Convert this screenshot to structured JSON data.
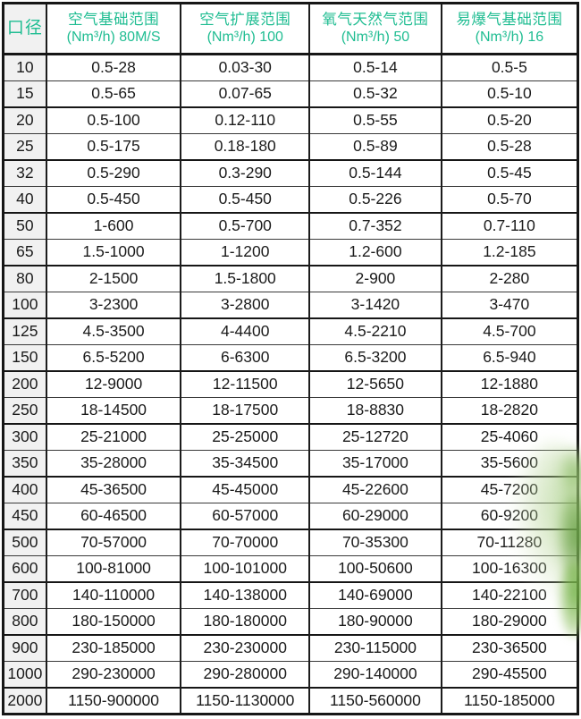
{
  "colors": {
    "header_text": "#20bd92",
    "body_text": "#1b1b1b",
    "diameter_column_bg": "#f1f1f1",
    "border": "#161616",
    "leaf_green": "#68ac3a",
    "background": "#ffffff"
  },
  "table": {
    "corner_header": "口径",
    "columns": [
      {
        "line1": "空气基础范围",
        "line2": "(Nm³/h)  80M/S"
      },
      {
        "line1": "空气扩展范围",
        "line2": "(Nm³/h)  100"
      },
      {
        "line1": "氧气天然气范围",
        "line2": "(Nm³/h)  50"
      },
      {
        "line1": "易爆气基础范围",
        "line2": "(Nm³/h)  16"
      }
    ],
    "rows": [
      [
        "10",
        "0.5-28",
        "0.03-30",
        "0.5-14",
        "0.5-5"
      ],
      [
        "15",
        "0.5-65",
        "0.07-65",
        "0.5-32",
        "0.5-10"
      ],
      [
        "20",
        "0.5-100",
        "0.12-110",
        "0.5-55",
        "0.5-20"
      ],
      [
        "25",
        "0.5-175",
        "0.18-180",
        "0.5-89",
        "0.5-28"
      ],
      [
        "32",
        "0.5-290",
        "0.3-290",
        "0.5-144",
        "0.5-45"
      ],
      [
        "40",
        "0.5-450",
        "0.5-450",
        "0.5-226",
        "0.5-70"
      ],
      [
        "50",
        "1-600",
        "0.5-700",
        "0.7-352",
        "0.7-110"
      ],
      [
        "65",
        "1.5-1000",
        "1-1200",
        "1.2-600",
        "1.2-185"
      ],
      [
        "80",
        "2-1500",
        "1.5-1800",
        "2-900",
        "2-280"
      ],
      [
        "100",
        "3-2300",
        "3-2800",
        "3-1420",
        "3-470"
      ],
      [
        "125",
        "4.5-3500",
        "4-4400",
        "4.5-2210",
        "4.5-700"
      ],
      [
        "150",
        "6.5-5200",
        "6-6300",
        "6.5-3200",
        "6.5-940"
      ],
      [
        "200",
        "12-9000",
        "12-11500",
        "12-5650",
        "12-1880"
      ],
      [
        "250",
        "18-14500",
        "18-17500",
        "18-8830",
        "18-2820"
      ],
      [
        "300",
        "25-21000",
        "25-25000",
        "25-12720",
        "25-4060"
      ],
      [
        "350",
        "35-28000",
        "35-34500",
        "35-17000",
        "35-5600"
      ],
      [
        "400",
        "45-36500",
        "45-45000",
        "45-22600",
        "45-7200"
      ],
      [
        "450",
        "60-46500",
        "60-57000",
        "60-29000",
        "60-9200"
      ],
      [
        "500",
        "70-57000",
        "70-70000",
        "70-35300",
        "70-11280"
      ],
      [
        "600",
        "100-81000",
        "100-101000",
        "100-50600",
        "100-16300"
      ],
      [
        "700",
        "140-110000",
        "140-138000",
        "140-69000",
        "140-22100"
      ],
      [
        "800",
        "180-150000",
        "180-180000",
        "180-90000",
        "180-29000"
      ],
      [
        "900",
        "230-185000",
        "230-230000",
        "230-115000",
        "230-36500"
      ],
      [
        "1000",
        "290-230000",
        "290-280000",
        "290-140000",
        "290-45500"
      ],
      [
        "2000",
        "1150-900000",
        "1150-1130000",
        "1150-560000",
        "1150-185000"
      ]
    ]
  },
  "chart_data": {
    "type": "table",
    "title": "",
    "columns": [
      "口径",
      "空气基础范围 (Nm³/h) 80M/S",
      "空气扩展范围 (Nm³/h) 100",
      "氧气天然气范围 (Nm³/h) 50",
      "易爆气基础范围 (Nm³/h) 16"
    ],
    "rows": [
      [
        "10",
        "0.5-28",
        "0.03-30",
        "0.5-14",
        "0.5-5"
      ],
      [
        "15",
        "0.5-65",
        "0.07-65",
        "0.5-32",
        "0.5-10"
      ],
      [
        "20",
        "0.5-100",
        "0.12-110",
        "0.5-55",
        "0.5-20"
      ],
      [
        "25",
        "0.5-175",
        "0.18-180",
        "0.5-89",
        "0.5-28"
      ],
      [
        "32",
        "0.5-290",
        "0.3-290",
        "0.5-144",
        "0.5-45"
      ],
      [
        "40",
        "0.5-450",
        "0.5-450",
        "0.5-226",
        "0.5-70"
      ],
      [
        "50",
        "1-600",
        "0.5-700",
        "0.7-352",
        "0.7-110"
      ],
      [
        "65",
        "1.5-1000",
        "1-1200",
        "1.2-600",
        "1.2-185"
      ],
      [
        "80",
        "2-1500",
        "1.5-1800",
        "2-900",
        "2-280"
      ],
      [
        "100",
        "3-2300",
        "3-2800",
        "3-1420",
        "3-470"
      ],
      [
        "125",
        "4.5-3500",
        "4-4400",
        "4.5-2210",
        "4.5-700"
      ],
      [
        "150",
        "6.5-5200",
        "6-6300",
        "6.5-3200",
        "6.5-940"
      ],
      [
        "200",
        "12-9000",
        "12-11500",
        "12-5650",
        "12-1880"
      ],
      [
        "250",
        "18-14500",
        "18-17500",
        "18-8830",
        "18-2820"
      ],
      [
        "300",
        "25-21000",
        "25-25000",
        "25-12720",
        "25-4060"
      ],
      [
        "350",
        "35-28000",
        "35-34500",
        "35-17000",
        "35-5600"
      ],
      [
        "400",
        "45-36500",
        "45-45000",
        "45-22600",
        "45-7200"
      ],
      [
        "450",
        "60-46500",
        "60-57000",
        "60-29000",
        "60-9200"
      ],
      [
        "500",
        "70-57000",
        "70-70000",
        "70-35300",
        "70-11280"
      ],
      [
        "600",
        "100-81000",
        "100-101000",
        "100-50600",
        "100-16300"
      ],
      [
        "700",
        "140-110000",
        "140-138000",
        "140-69000",
        "140-22100"
      ],
      [
        "800",
        "180-150000",
        "180-180000",
        "180-90000",
        "180-29000"
      ],
      [
        "900",
        "230-185000",
        "230-230000",
        "230-115000",
        "230-36500"
      ],
      [
        "1000",
        "290-230000",
        "290-280000",
        "290-140000",
        "290-45500"
      ],
      [
        "2000",
        "1150-900000",
        "1150-1130000",
        "1150-560000",
        "1150-185000"
      ]
    ]
  }
}
